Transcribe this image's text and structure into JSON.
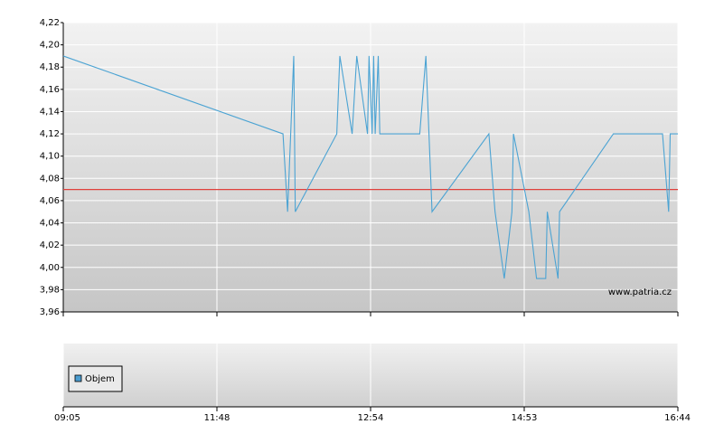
{
  "chart_data": {
    "type": "line",
    "x": [
      0,
      1.43,
      1.46,
      1.5,
      1.51,
      1.78,
      1.8,
      1.88,
      1.91,
      1.98,
      1.99,
      2.01,
      2.02,
      2.03,
      2.05,
      2.06,
      2.32,
      2.36,
      2.4,
      2.77,
      2.81,
      2.87,
      2.92,
      2.93,
      3.03,
      3.08,
      3.14,
      3.15,
      3.22,
      3.23,
      3.58,
      3.9,
      3.94,
      3.95,
      4.0
    ],
    "series": [
      {
        "color": "#4ba3d3",
        "values": [
          4.19,
          4.12,
          4.05,
          4.19,
          4.05,
          4.12,
          4.19,
          4.12,
          4.19,
          4.12,
          4.19,
          4.12,
          4.19,
          4.12,
          4.19,
          4.12,
          4.12,
          4.19,
          4.05,
          4.12,
          4.05,
          3.99,
          4.05,
          4.12,
          4.05,
          3.99,
          3.99,
          4.05,
          3.99,
          4.05,
          4.12,
          4.12,
          4.05,
          4.12,
          4.12
        ]
      }
    ],
    "reference_line": {
      "value": 4.07,
      "color": "#e0403c"
    },
    "xlim": [
      0,
      4
    ],
    "xticks": [
      {
        "value": 0,
        "label": "09:05"
      },
      {
        "value": 1,
        "label": "11:48"
      },
      {
        "value": 2,
        "label": "12:54"
      },
      {
        "value": 3,
        "label": "14:53"
      },
      {
        "value": 4,
        "label": "16:44"
      }
    ],
    "ylim": [
      3.96,
      4.22
    ],
    "yticks": [
      {
        "value": 3.96,
        "label": "3,96"
      },
      {
        "value": 3.98,
        "label": "3,98"
      },
      {
        "value": 4.0,
        "label": "4,00"
      },
      {
        "value": 4.02,
        "label": "4,02"
      },
      {
        "value": 4.04,
        "label": "4,04"
      },
      {
        "value": 4.06,
        "label": "4,06"
      },
      {
        "value": 4.08,
        "label": "4,08"
      },
      {
        "value": 4.1,
        "label": "4,10"
      },
      {
        "value": 4.12,
        "label": "4,12"
      },
      {
        "value": 4.14,
        "label": "4,14"
      },
      {
        "value": 4.16,
        "label": "4,16"
      },
      {
        "value": 4.18,
        "label": "4,18"
      },
      {
        "value": 4.2,
        "label": "4,20"
      },
      {
        "value": 4.22,
        "label": "4,22"
      }
    ],
    "grid": true,
    "volume_legend": {
      "name": "Objem",
      "color": "#4a9cd0"
    },
    "watermark": "www.patria.cz"
  }
}
